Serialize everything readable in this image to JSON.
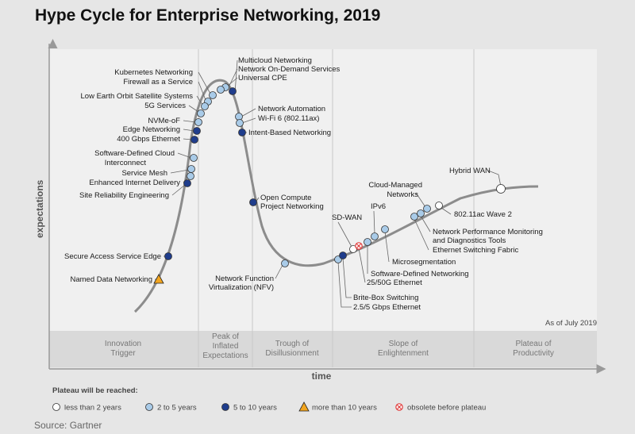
{
  "title": "Hype Cycle for Enterprise Networking, 2019",
  "ylabel": "expectations",
  "xlabel": "time",
  "as_of": "As of July 2019",
  "source": "Source: Gartner",
  "phases": [
    {
      "lines": [
        "Innovation",
        "Trigger"
      ]
    },
    {
      "lines": [
        "Peak of",
        "Inflated",
        "Expectations"
      ]
    },
    {
      "lines": [
        "Trough of",
        "Disillusionment"
      ]
    },
    {
      "lines": [
        "Slope of",
        "Enlightenment"
      ]
    },
    {
      "lines": [
        "Plateau of",
        "Productivity"
      ]
    }
  ],
  "legend": {
    "title": "Plateau will be reached:",
    "items": [
      {
        "key": "lt2",
        "label": "less than 2 years",
        "color": "#ffffff"
      },
      {
        "key": "2to5",
        "label": "2 to 5 years",
        "color": "#a9cbe8"
      },
      {
        "key": "5to10",
        "label": "5 to 10 years",
        "color": "#1f3d8c"
      },
      {
        "key": "gt10",
        "label": "more than 10 years",
        "color": "#f2a51f"
      },
      {
        "key": "obs",
        "label": "obsolete before plateau",
        "color": "#e03c3c"
      }
    ]
  },
  "technologies": [
    {
      "lines": [
        "Multicloud Networking"
      ],
      "cat": "5to10"
    },
    {
      "lines": [
        "Network On-Demand Services"
      ],
      "cat": "2to5"
    },
    {
      "lines": [
        "Universal CPE"
      ],
      "cat": "2to5"
    },
    {
      "lines": [
        "Kubernetes Networking"
      ],
      "cat": "2to5"
    },
    {
      "lines": [
        "Firewall as a Service"
      ],
      "cat": "2to5"
    },
    {
      "lines": [
        "Low Earth Orbit Satellite Systems"
      ],
      "cat": "2to5"
    },
    {
      "lines": [
        "5G Services"
      ],
      "cat": "2to5"
    },
    {
      "lines": [
        "NVMe-oF"
      ],
      "cat": "2to5"
    },
    {
      "lines": [
        "Edge Networking"
      ],
      "cat": "5to10"
    },
    {
      "lines": [
        "400 Gbps Ethernet"
      ],
      "cat": "5to10"
    },
    {
      "lines": [
        "Software-Defined Cloud",
        "Interconnect"
      ],
      "cat": "2to5"
    },
    {
      "lines": [
        "Service Mesh"
      ],
      "cat": "2to5"
    },
    {
      "lines": [
        "Enhanced Internet Delivery"
      ],
      "cat": "2to5"
    },
    {
      "lines": [
        "Site Reliability Engineering"
      ],
      "cat": "5to10"
    },
    {
      "lines": [
        "Network Automation"
      ],
      "cat": "2to5"
    },
    {
      "lines": [
        "Wi-Fi 6 (802.11ax)"
      ],
      "cat": "2to5"
    },
    {
      "lines": [
        "Intent-Based Networking"
      ],
      "cat": "5to10"
    },
    {
      "lines": [
        "Open Compute",
        "Project Networking"
      ],
      "cat": "5to10"
    },
    {
      "lines": [
        "Secure Access Service Edge"
      ],
      "cat": "5to10"
    },
    {
      "lines": [
        "Named Data Networking"
      ],
      "cat": "gt10"
    },
    {
      "lines": [
        "Network Function",
        "Virtualization (NFV)"
      ],
      "cat": "2to5"
    },
    {
      "lines": [
        "2.5/5 Gbps Ethernet"
      ],
      "cat": "2to5"
    },
    {
      "lines": [
        "Brite-Box Switching"
      ],
      "cat": "5to10"
    },
    {
      "lines": [
        "SD-WAN"
      ],
      "cat": "lt2"
    },
    {
      "lines": [
        "25/50G Ethernet"
      ],
      "cat": "obs"
    },
    {
      "lines": [
        "IPv6"
      ],
      "cat": "2to5"
    },
    {
      "lines": [
        "Software-Defined Networking"
      ],
      "cat": "2to5"
    },
    {
      "lines": [
        "Microsegmentation"
      ],
      "cat": "2to5"
    },
    {
      "lines": [
        "Cloud-Managed",
        "Networks"
      ],
      "cat": "2to5"
    },
    {
      "lines": [
        "Ethernet Switching Fabric"
      ],
      "cat": "2to5"
    },
    {
      "lines": [
        "Network Performance Monitoring",
        "and Diagnostics Tools"
      ],
      "cat": "2to5"
    },
    {
      "lines": [
        "802.11ac Wave 2"
      ],
      "cat": "lt2"
    },
    {
      "lines": [
        "Hybrid WAN"
      ],
      "cat": "lt2"
    }
  ]
}
